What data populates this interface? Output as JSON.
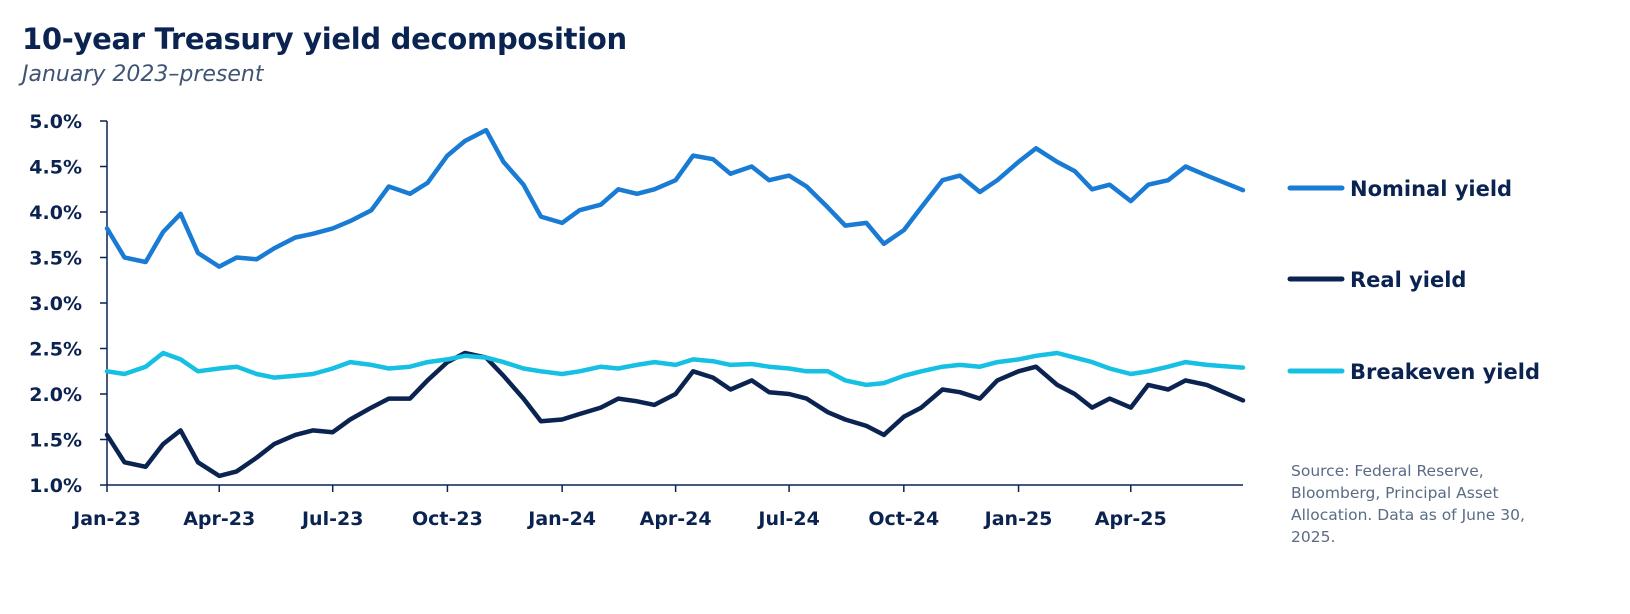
{
  "chart_data": {
    "type": "line",
    "title": "10-year Treasury yield decomposition",
    "subtitle": "January 2023–present",
    "xlabel": "",
    "ylabel": "",
    "y_unit": "%",
    "ylim": [
      1.0,
      5.0
    ],
    "y_ticks": [
      1.0,
      1.5,
      2.0,
      2.5,
      3.0,
      3.5,
      4.0,
      4.5,
      5.0
    ],
    "y_tick_labels": [
      "1.0%",
      "1.5%",
      "2.0%",
      "2.5%",
      "3.0%",
      "3.5%",
      "4.0%",
      "4.5%",
      "5.0%"
    ],
    "xlim": [
      "2023-01-01",
      "2025-06-30"
    ],
    "x_ticks": [
      "2023-01-01",
      "2023-04-01",
      "2023-07-01",
      "2023-10-01",
      "2024-01-01",
      "2024-04-01",
      "2024-07-01",
      "2024-10-01",
      "2025-01-01",
      "2025-04-01"
    ],
    "x_tick_labels": [
      "Jan-23",
      "Apr-23",
      "Jul-23",
      "Oct-23",
      "Jan-24",
      "Apr-24",
      "Jul-24",
      "Oct-24",
      "Jan-25",
      "Apr-25"
    ],
    "grid": false,
    "legend_placement": "right",
    "x": [
      "2023-01-01",
      "2023-01-15",
      "2023-02-01",
      "2023-02-15",
      "2023-03-01",
      "2023-03-15",
      "2023-04-01",
      "2023-04-15",
      "2023-05-01",
      "2023-05-15",
      "2023-06-01",
      "2023-06-15",
      "2023-07-01",
      "2023-07-15",
      "2023-08-01",
      "2023-08-15",
      "2023-09-01",
      "2023-09-15",
      "2023-10-01",
      "2023-10-15",
      "2023-11-01",
      "2023-11-15",
      "2023-12-01",
      "2023-12-15",
      "2024-01-01",
      "2024-01-15",
      "2024-02-01",
      "2024-02-15",
      "2024-03-01",
      "2024-03-15",
      "2024-04-01",
      "2024-04-15",
      "2024-05-01",
      "2024-05-15",
      "2024-06-01",
      "2024-06-15",
      "2024-07-01",
      "2024-07-15",
      "2024-08-01",
      "2024-08-15",
      "2024-09-01",
      "2024-09-15",
      "2024-10-01",
      "2024-10-15",
      "2024-11-01",
      "2024-11-15",
      "2024-12-01",
      "2024-12-15",
      "2025-01-01",
      "2025-01-15",
      "2025-02-01",
      "2025-02-15",
      "2025-03-01",
      "2025-03-15",
      "2025-04-01",
      "2025-04-15",
      "2025-05-01",
      "2025-05-15",
      "2025-06-01",
      "2025-06-30"
    ],
    "series": [
      {
        "name": "Nominal yield",
        "color": "#1a7bd4",
        "values": [
          3.82,
          3.5,
          3.45,
          3.78,
          3.98,
          3.55,
          3.4,
          3.5,
          3.48,
          3.6,
          3.72,
          3.76,
          3.82,
          3.9,
          4.02,
          4.28,
          4.2,
          4.32,
          4.62,
          4.78,
          4.9,
          4.55,
          4.3,
          3.95,
          3.88,
          4.02,
          4.08,
          4.25,
          4.2,
          4.25,
          4.35,
          4.62,
          4.58,
          4.42,
          4.5,
          4.35,
          4.4,
          4.28,
          4.05,
          3.85,
          3.88,
          3.65,
          3.8,
          4.05,
          4.35,
          4.4,
          4.22,
          4.35,
          4.55,
          4.7,
          4.55,
          4.45,
          4.25,
          4.3,
          4.12,
          4.3,
          4.35,
          4.5,
          4.4,
          4.24
        ]
      },
      {
        "name": "Real yield",
        "color": "#0b2350",
        "values": [
          1.55,
          1.25,
          1.2,
          1.45,
          1.6,
          1.25,
          1.1,
          1.15,
          1.3,
          1.45,
          1.55,
          1.6,
          1.58,
          1.72,
          1.85,
          1.95,
          1.95,
          2.15,
          2.35,
          2.45,
          2.4,
          2.2,
          1.95,
          1.7,
          1.72,
          1.78,
          1.85,
          1.95,
          1.92,
          1.88,
          2.0,
          2.25,
          2.18,
          2.05,
          2.15,
          2.02,
          2.0,
          1.95,
          1.8,
          1.72,
          1.65,
          1.55,
          1.75,
          1.85,
          2.05,
          2.02,
          1.95,
          2.15,
          2.25,
          2.3,
          2.1,
          2.0,
          1.85,
          1.95,
          1.85,
          2.1,
          2.05,
          2.15,
          2.1,
          1.93
        ]
      },
      {
        "name": "Breakeven yield",
        "color": "#16c0e2",
        "values": [
          2.25,
          2.22,
          2.3,
          2.45,
          2.38,
          2.25,
          2.28,
          2.3,
          2.22,
          2.18,
          2.2,
          2.22,
          2.28,
          2.35,
          2.32,
          2.28,
          2.3,
          2.35,
          2.38,
          2.42,
          2.4,
          2.35,
          2.28,
          2.25,
          2.22,
          2.25,
          2.3,
          2.28,
          2.32,
          2.35,
          2.32,
          2.38,
          2.36,
          2.32,
          2.33,
          2.3,
          2.28,
          2.25,
          2.25,
          2.15,
          2.1,
          2.12,
          2.2,
          2.25,
          2.3,
          2.32,
          2.3,
          2.35,
          2.38,
          2.42,
          2.45,
          2.4,
          2.35,
          2.28,
          2.22,
          2.25,
          2.3,
          2.35,
          2.32,
          2.29
        ]
      }
    ],
    "source": "Source: Federal Reserve, Bloomberg, Principal Asset Allocation. Data as of June 30, 2025."
  }
}
